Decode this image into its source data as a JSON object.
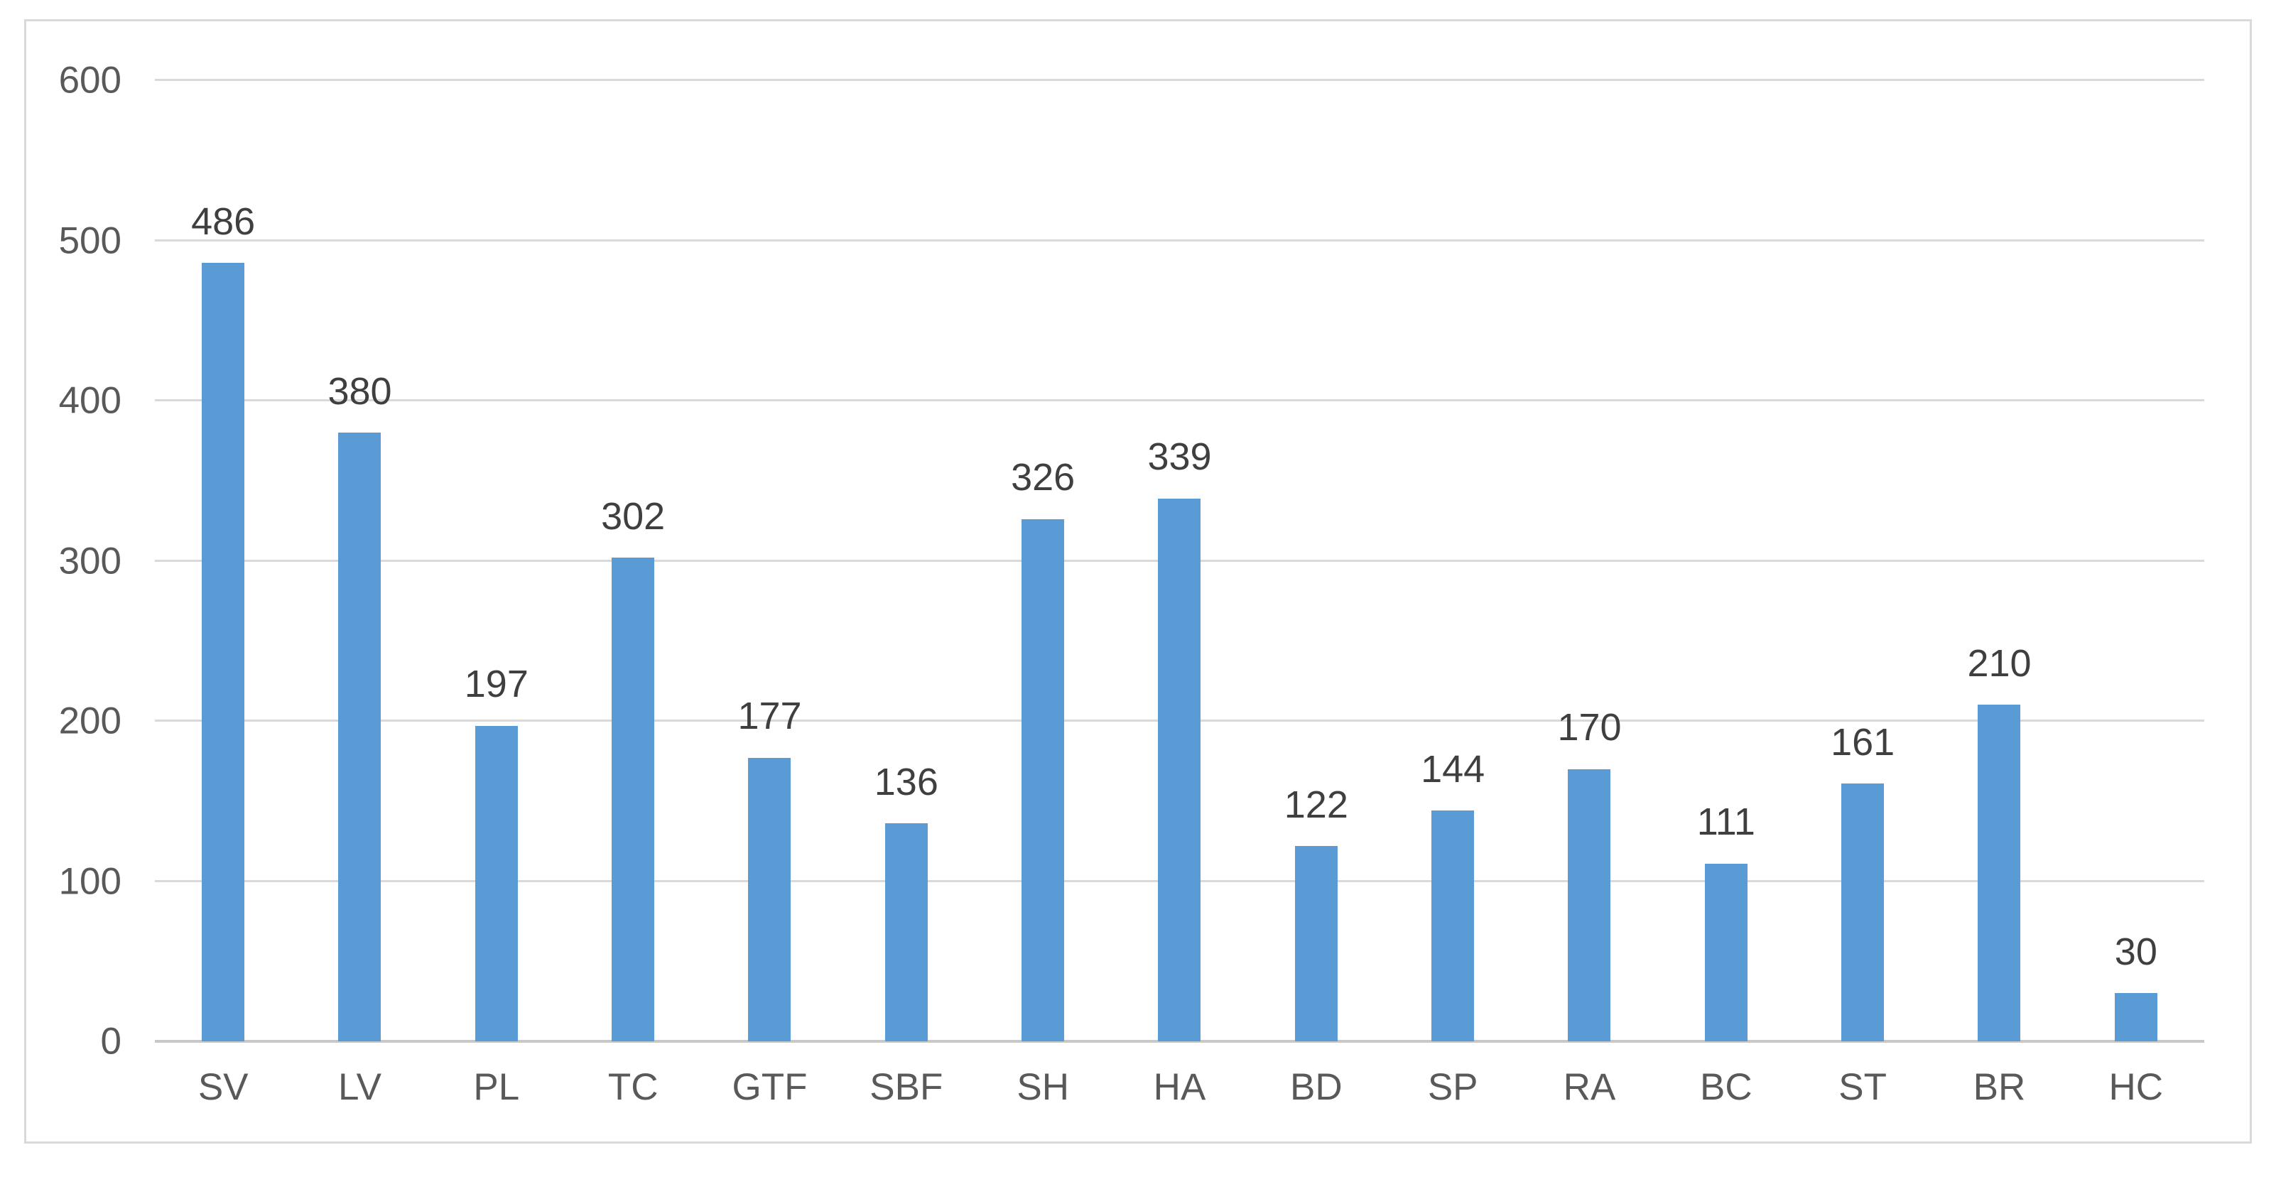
{
  "chart_data": {
    "type": "bar",
    "title": "",
    "xlabel": "",
    "ylabel": "",
    "categories": [
      "SV",
      "LV",
      "PL",
      "TC",
      "GTF",
      "SBF",
      "SH",
      "HA",
      "BD",
      "SP",
      "RA",
      "BC",
      "ST",
      "BR",
      "HC"
    ],
    "values": [
      486,
      380,
      197,
      302,
      177,
      136,
      326,
      339,
      122,
      144,
      170,
      111,
      161,
      210,
      30
    ],
    "data_labels_shown": true,
    "ylim": [
      0,
      600
    ],
    "yticks": [
      0,
      100,
      200,
      300,
      400,
      500,
      600
    ],
    "grid": true,
    "legend_position": "none",
    "colors": {
      "bar": "#5B9BD5",
      "gridline": "#D9D9D9",
      "axis_line": "#C8C8C8",
      "axis_text": "#595959",
      "data_label_text": "#3F3F3F",
      "frame_border": "#D9D9D9",
      "background": "#FFFFFF"
    }
  }
}
